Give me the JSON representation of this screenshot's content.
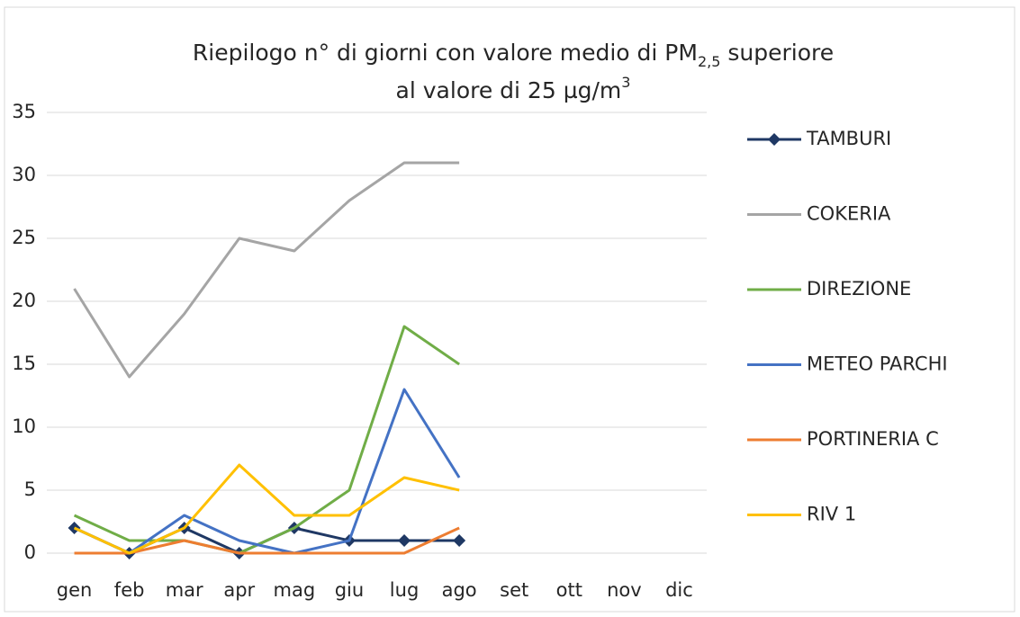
{
  "chart_data": {
    "type": "line",
    "title": {
      "line1": [
        "Riepilogo  n° di giorni con valore medio di PM",
        "2,5",
        " superiore"
      ],
      "line2": [
        "al valore di 25 µg/m",
        "3"
      ]
    },
    "categories": [
      "gen",
      "feb",
      "mar",
      "apr",
      "mag",
      "giu",
      "lug",
      "ago",
      "set",
      "ott",
      "nov",
      "dic"
    ],
    "series": [
      {
        "name": "TAMBURI",
        "color": "#1f3864",
        "marker": "diamond",
        "values": [
          2,
          0,
          2,
          0,
          2,
          1,
          1,
          1,
          null,
          null,
          null,
          null
        ]
      },
      {
        "name": "COKERIA",
        "color": "#a5a5a5",
        "values": [
          21,
          14,
          19,
          25,
          24,
          28,
          31,
          31,
          null,
          null,
          null,
          null
        ]
      },
      {
        "name": "DIREZIONE",
        "color": "#70ad47",
        "values": [
          3,
          1,
          1,
          0,
          2,
          5,
          18,
          15,
          null,
          null,
          null,
          null
        ]
      },
      {
        "name": "METEO PARCHI",
        "color": "#4472c4",
        "values": [
          2,
          0,
          3,
          1,
          0,
          1,
          13,
          6,
          null,
          null,
          null,
          null
        ]
      },
      {
        "name": "PORTINERIA C",
        "color": "#ed7d31",
        "values": [
          0,
          0,
          1,
          0,
          0,
          0,
          0,
          2,
          null,
          null,
          null,
          null
        ]
      },
      {
        "name": "RIV 1",
        "color": "#ffc000",
        "values": [
          2,
          0,
          2,
          7,
          3,
          3,
          6,
          5,
          null,
          null,
          null,
          null
        ]
      }
    ],
    "ylim": [
      0,
      35
    ],
    "yticks": [
      0,
      5,
      10,
      15,
      20,
      25,
      30,
      35
    ],
    "grid": true,
    "legend": "right"
  }
}
